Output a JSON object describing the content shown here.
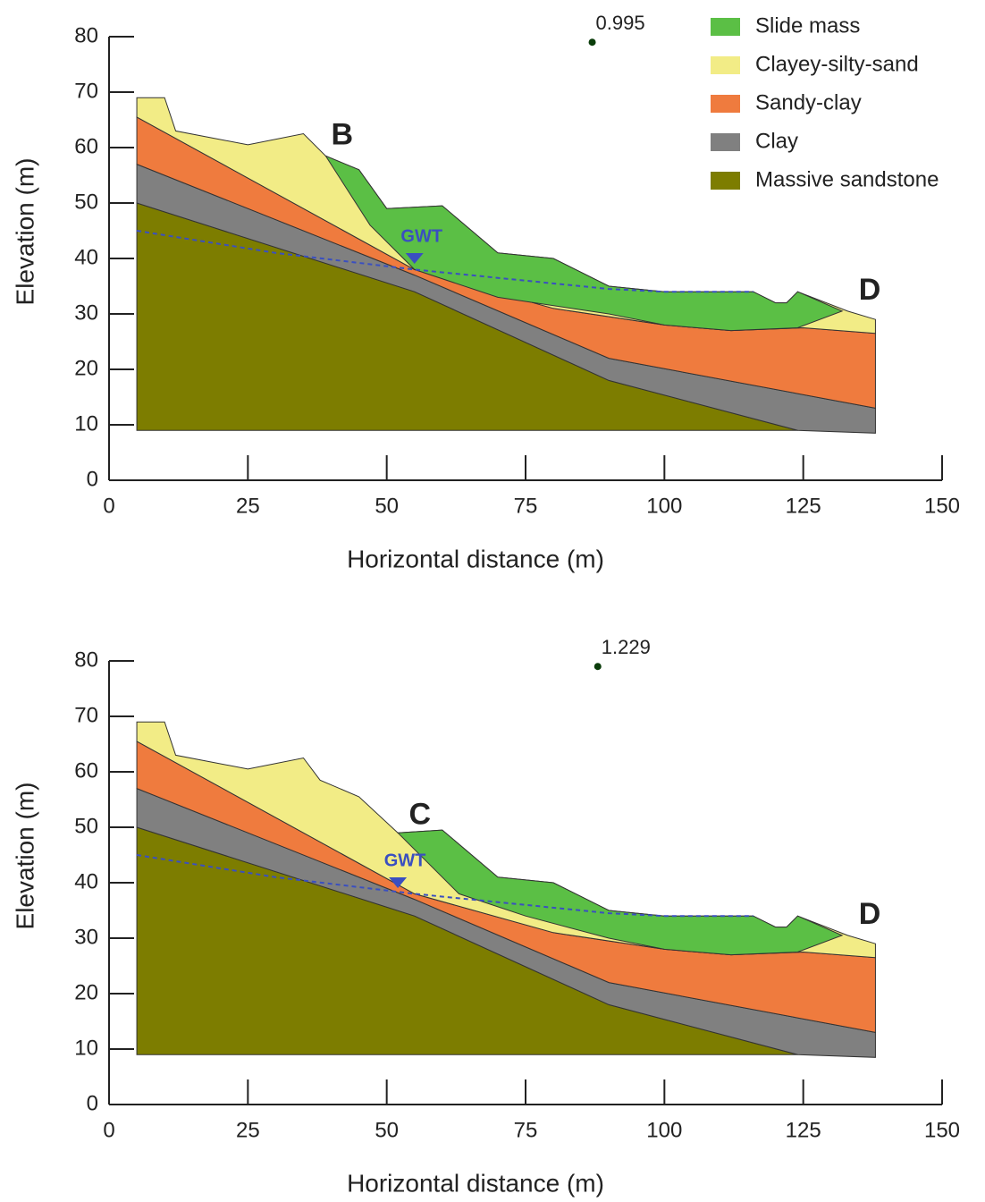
{
  "chart_data": [
    {
      "type": "cross-section",
      "xlabel": "Horizontal distance (m)",
      "ylabel": "Elevation (m)",
      "xlim": [
        0,
        150
      ],
      "ylim": [
        0,
        80
      ],
      "xticks": [
        0,
        25,
        50,
        75,
        100,
        125,
        150
      ],
      "yticks": [
        0,
        10,
        20,
        30,
        40,
        50,
        60,
        70,
        80
      ],
      "legend": "right",
      "series": [
        {
          "name": "Slide mass",
          "color": "#5bbf45",
          "x": [
            39,
            45,
            50,
            60,
            70,
            80,
            90,
            100,
            116,
            120,
            122,
            124,
            132,
            124,
            112,
            100,
            90,
            70,
            55,
            47
          ],
          "y": [
            58.5,
            56,
            49,
            49.5,
            41,
            40,
            35,
            34,
            34,
            32,
            32,
            34,
            30.5,
            27.5,
            27,
            28,
            30,
            33,
            38,
            46
          ]
        },
        {
          "name": "Clayey-silty-sand",
          "color": "#f2ec86",
          "x": [
            5,
            10,
            12,
            25,
            35,
            39,
            45,
            50,
            60,
            70,
            80,
            90,
            100,
            116,
            120,
            122,
            124,
            133,
            138,
            138,
            125,
            112,
            100,
            80,
            55,
            5
          ],
          "y": [
            69,
            69,
            63,
            60.5,
            62.5,
            58.5,
            56,
            49,
            49.5,
            41,
            40,
            35,
            34,
            34,
            32,
            32,
            34,
            30.5,
            29,
            26.5,
            27.5,
            27,
            28,
            31,
            38,
            65.5
          ]
        },
        {
          "name": "Sandy-clay",
          "color": "#ef7b3e",
          "x": [
            5,
            55,
            80,
            100,
            112,
            125,
            138,
            138,
            90,
            55,
            5
          ],
          "y": [
            65.5,
            38,
            31,
            28,
            27,
            27.5,
            26.5,
            13,
            22,
            37,
            57
          ]
        },
        {
          "name": "Clay",
          "color": "#808080",
          "x": [
            5,
            55,
            90,
            138,
            138,
            124,
            90,
            55,
            5
          ],
          "y": [
            57,
            37,
            22,
            13,
            8.5,
            9,
            18,
            34,
            50
          ]
        },
        {
          "name": "Massive sandstone",
          "color": "#7d7d00",
          "x": [
            5,
            55,
            90,
            124,
            5
          ],
          "y": [
            50,
            34,
            18,
            9,
            9
          ]
        }
      ],
      "gwt": {
        "label": "GWT",
        "color": "#3a4fc0",
        "x": [
          5,
          30,
          55,
          75,
          90,
          100,
          116
        ],
        "y": [
          45,
          41,
          38,
          36,
          34.5,
          34,
          34
        ],
        "marker_x": 55,
        "marker_y": 40
      },
      "slip_center": {
        "label": "0.995",
        "x": 87,
        "y": 79
      },
      "labels": [
        {
          "text": "B",
          "x": 40,
          "y": 62
        },
        {
          "text": "D",
          "x": 135,
          "y": 34
        }
      ]
    },
    {
      "type": "cross-section",
      "xlabel": "Horizontal distance (m)",
      "ylabel": "Elevation (m)",
      "xlim": [
        0,
        150
      ],
      "ylim": [
        0,
        80
      ],
      "xticks": [
        0,
        25,
        50,
        75,
        100,
        125,
        150
      ],
      "yticks": [
        0,
        10,
        20,
        30,
        40,
        50,
        60,
        70,
        80
      ],
      "series": [
        {
          "color": "#5bbf45",
          "x": [
            52,
            60,
            70,
            80,
            90,
            100,
            116,
            120,
            122,
            124,
            132,
            124,
            112,
            100,
            90,
            75,
            63
          ],
          "y": [
            49,
            49.5,
            41,
            40,
            35,
            34,
            34,
            32,
            32,
            34,
            30.5,
            27.5,
            27,
            28,
            30,
            34,
            38
          ]
        },
        {
          "color": "#f2ec86",
          "x": [
            5,
            10,
            12,
            25,
            35,
            38,
            45,
            52,
            60,
            70,
            80,
            90,
            100,
            116,
            120,
            122,
            124,
            133,
            138,
            138,
            125,
            112,
            100,
            80,
            55,
            5
          ],
          "y": [
            69,
            69,
            63,
            60.5,
            62.5,
            58.5,
            55.5,
            49,
            49.5,
            41,
            40,
            35,
            34,
            34,
            32,
            32,
            34,
            30.5,
            29,
            26.5,
            27.5,
            27,
            28,
            31,
            38,
            65.5
          ]
        },
        {
          "color": "#ef7b3e",
          "x": [
            5,
            55,
            80,
            100,
            112,
            125,
            138,
            138,
            90,
            55,
            5
          ],
          "y": [
            65.5,
            38,
            31,
            28,
            27,
            27.5,
            26.5,
            13,
            22,
            37,
            57
          ]
        },
        {
          "color": "#808080",
          "x": [
            5,
            55,
            90,
            138,
            138,
            124,
            90,
            55,
            5
          ],
          "y": [
            57,
            37,
            22,
            13,
            8.5,
            9,
            18,
            34,
            50
          ]
        },
        {
          "color": "#7d7d00",
          "x": [
            5,
            55,
            90,
            124,
            5
          ],
          "y": [
            50,
            34,
            18,
            9,
            9
          ]
        }
      ],
      "gwt": {
        "label": "GWT",
        "color": "#3a4fc0",
        "x": [
          5,
          30,
          55,
          75,
          90,
          100,
          116
        ],
        "y": [
          45,
          41,
          38,
          36,
          34.5,
          34,
          34
        ],
        "marker_x": 52,
        "marker_y": 40
      },
      "slip_center": {
        "label": "1.229",
        "x": 88,
        "y": 79
      },
      "labels": [
        {
          "text": "C",
          "x": 54,
          "y": 52
        },
        {
          "text": "D",
          "x": 135,
          "y": 34
        }
      ]
    }
  ]
}
